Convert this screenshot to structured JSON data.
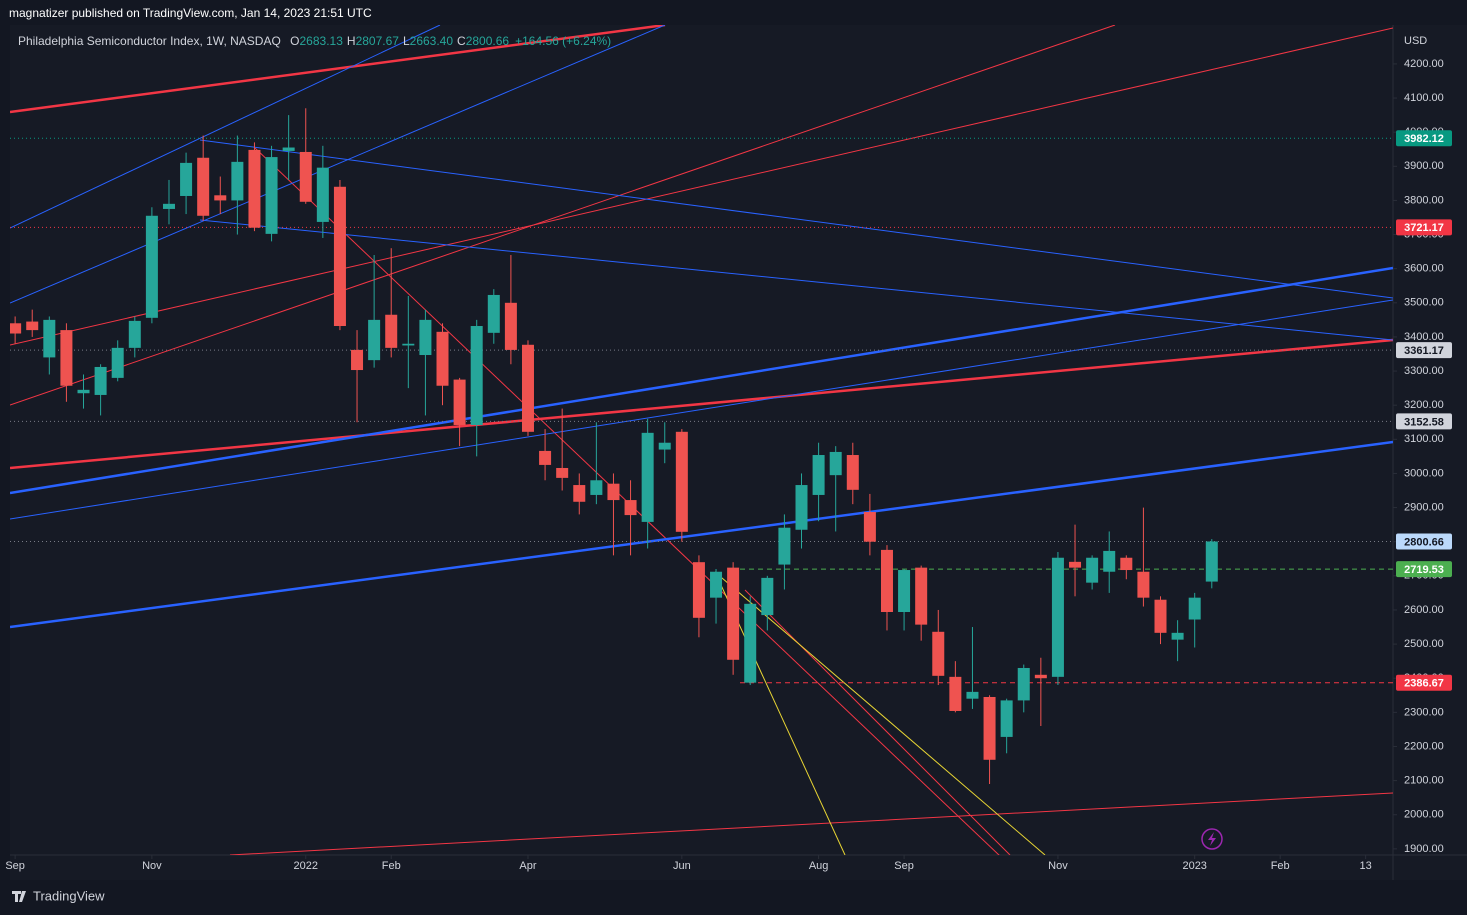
{
  "header": {
    "publisher": "magnatizer published on TradingView.com, Jan 14, 2023 21:51 UTC",
    "footer": "TradingView"
  },
  "chart_data": {
    "type": "candlestick",
    "title": "Philadelphia Semiconductor Index, 1W, NASDAQ",
    "ohlc_legend": [
      {
        "label": "O",
        "value": "2683.13"
      },
      {
        "label": "H",
        "value": "2807.67"
      },
      {
        "label": "L",
        "value": "2663.40"
      },
      {
        "label": "C",
        "value": "2800.66"
      }
    ],
    "change": "+164.56 (+6.24%)",
    "currency": "USD",
    "up_color": "#26a69a",
    "down_color": "#ef5350",
    "open": [
      3440,
      3445,
      3340,
      3420,
      3235,
      3230,
      3280,
      3368,
      3456,
      3775,
      3813,
      3925,
      3815,
      3800,
      3948,
      3702,
      3945,
      3942,
      3737,
      3840,
      3362,
      3332,
      3465,
      3375,
      3347,
      3415,
      3275,
      3142,
      3412,
      3500,
      3377,
      3066,
      3016,
      2966,
      2937,
      2970,
      2922,
      2858,
      3070,
      3122,
      2740,
      2636,
      2724,
      2387,
      2585,
      2733,
      2835,
      2937,
      2995,
      3054,
      2887,
      2776,
      2594,
      2724,
      2536,
      2404,
      2340,
      2345,
      2228,
      2335,
      2410,
      2404,
      2741,
      2680,
      2712,
      2753,
      2712,
      2630,
      2513,
      2572,
      2683.13
    ],
    "high": [
      3460,
      3480,
      3460,
      3440,
      3290,
      3320,
      3390,
      3460,
      3780,
      3860,
      3940,
      3990,
      3870,
      3990,
      3970,
      3960,
      4050,
      4070,
      3960,
      3860,
      3420,
      3640,
      3660,
      3520,
      3480,
      3440,
      3280,
      3450,
      3540,
      3640,
      3390,
      3130,
      3190,
      3000,
      3150,
      3000,
      2980,
      3160,
      3150,
      3130,
      2760,
      2720,
      2740,
      2640,
      2700,
      2880,
      3000,
      3090,
      3080,
      3090,
      2940,
      2790,
      2720,
      2730,
      2600,
      2450,
      2550,
      2350,
      2340,
      2440,
      2460,
      2770,
      2850,
      2760,
      2830,
      2760,
      2900,
      2640,
      2570,
      2650,
      2807.67
    ],
    "low": [
      3380,
      3400,
      3290,
      3210,
      3190,
      3170,
      3270,
      3340,
      3440,
      3730,
      3760,
      3740,
      3760,
      3700,
      3710,
      3680,
      3860,
      3790,
      3690,
      3420,
      3150,
      3310,
      3340,
      3250,
      3170,
      3200,
      3080,
      3050,
      3380,
      3320,
      3110,
      2980,
      2950,
      2880,
      2910,
      2760,
      2760,
      2780,
      3030,
      2800,
      2520,
      2560,
      2410,
      2380,
      2540,
      2660,
      2780,
      2860,
      2830,
      2910,
      2760,
      2540,
      2540,
      2510,
      2380,
      2300,
      2310,
      2090,
      2180,
      2300,
      2260,
      2380,
      2640,
      2660,
      2650,
      2690,
      2610,
      2500,
      2450,
      2490,
      2663.4
    ],
    "close": [
      3410,
      3420,
      3450,
      3257,
      3245,
      3312,
      3368,
      3447,
      3755,
      3790,
      3910,
      3755,
      3800,
      3913,
      3720,
      3927,
      3955,
      3796,
      3896,
      3432,
      3303,
      3450,
      3368,
      3380,
      3450,
      3257,
      3142,
      3432,
      3523,
      3362,
      3122,
      3025,
      2987,
      2917,
      2980,
      2922,
      2878,
      3119,
      3090,
      2829,
      2577,
      2712,
      2454,
      2618,
      2694,
      2841,
      2966,
      3054,
      3063,
      2952,
      2800,
      2594,
      2717,
      2557,
      2407,
      2304,
      2360,
      2161,
      2335,
      2430,
      2400,
      2753,
      2724,
      2753,
      2773,
      2717,
      2636,
      2533,
      2533,
      2636,
      2800.66
    ],
    "xlim": [
      -0.3,
      80.6
    ],
    "xticks": [
      {
        "value": 0,
        "label": "Sep"
      },
      {
        "value": 8,
        "label": "Nov"
      },
      {
        "value": 17,
        "label": "2022"
      },
      {
        "value": 22,
        "label": "Feb"
      },
      {
        "value": 30,
        "label": "Apr"
      },
      {
        "value": 39,
        "label": "Jun"
      },
      {
        "value": 47,
        "label": "Aug"
      },
      {
        "value": 52,
        "label": "Sep"
      },
      {
        "value": 61,
        "label": "Nov"
      },
      {
        "value": 69,
        "label": "2023"
      },
      {
        "value": 74,
        "label": "Feb"
      },
      {
        "value": 79,
        "label": "13"
      }
    ],
    "ylim": [
      1882,
      4314
    ],
    "yticks": [
      {
        "value": 1900,
        "label": "1900.00"
      },
      {
        "value": 2000,
        "label": "2000.00"
      },
      {
        "value": 2100,
        "label": "2100.00"
      },
      {
        "value": 2200,
        "label": "2200.00"
      },
      {
        "value": 2300,
        "label": "2300.00"
      },
      {
        "value": 2400,
        "label": "2400.00"
      },
      {
        "value": 2500,
        "label": "2500.00"
      },
      {
        "value": 2600,
        "label": "2600.00"
      },
      {
        "value": 2700,
        "label": "2700.00"
      },
      {
        "value": 2800,
        "label": "2800.00"
      },
      {
        "value": 2900,
        "label": "2900.00"
      },
      {
        "value": 3000,
        "label": "3000.00"
      },
      {
        "value": 3100,
        "label": "3100.00"
      },
      {
        "value": 3200,
        "label": "3200.00"
      },
      {
        "value": 3300,
        "label": "3300.00"
      },
      {
        "value": 3400,
        "label": "3400.00"
      },
      {
        "value": 3500,
        "label": "3500.00"
      },
      {
        "value": 3600,
        "label": "3600.00"
      },
      {
        "value": 3700,
        "label": "3700.00"
      },
      {
        "value": 3800,
        "label": "3800.00"
      },
      {
        "value": 3900,
        "label": "3900.00"
      },
      {
        "value": 4000,
        "label": "4000.00"
      },
      {
        "value": 4100,
        "label": "4100.00"
      },
      {
        "value": 4200,
        "label": "4200.00"
      }
    ],
    "levels": [
      {
        "value": 3982.12,
        "color": "#089981",
        "text_color": "#ffffff",
        "style": "dotted"
      },
      {
        "value": 3721.17,
        "color": "#f23645",
        "text_color": "#ffffff",
        "style": "dotted"
      },
      {
        "value": 3361.17,
        "color": "#d1d4dc",
        "text_color": "#131722",
        "style": "dotted"
      },
      {
        "value": 3152.58,
        "color": "#d1d4dc",
        "text_color": "#131722",
        "style": "dotted"
      },
      {
        "value": 2800.66,
        "color": "#bbd9fb",
        "text_color": "#131722",
        "style": "dotted"
      },
      {
        "value": 2719.53,
        "color": "#4caf50",
        "text_color": "#ffffff",
        "style": "dashed"
      },
      {
        "value": 2386.67,
        "color": "#f23645",
        "text_color": "#ffffff",
        "style": "dashed"
      }
    ]
  }
}
